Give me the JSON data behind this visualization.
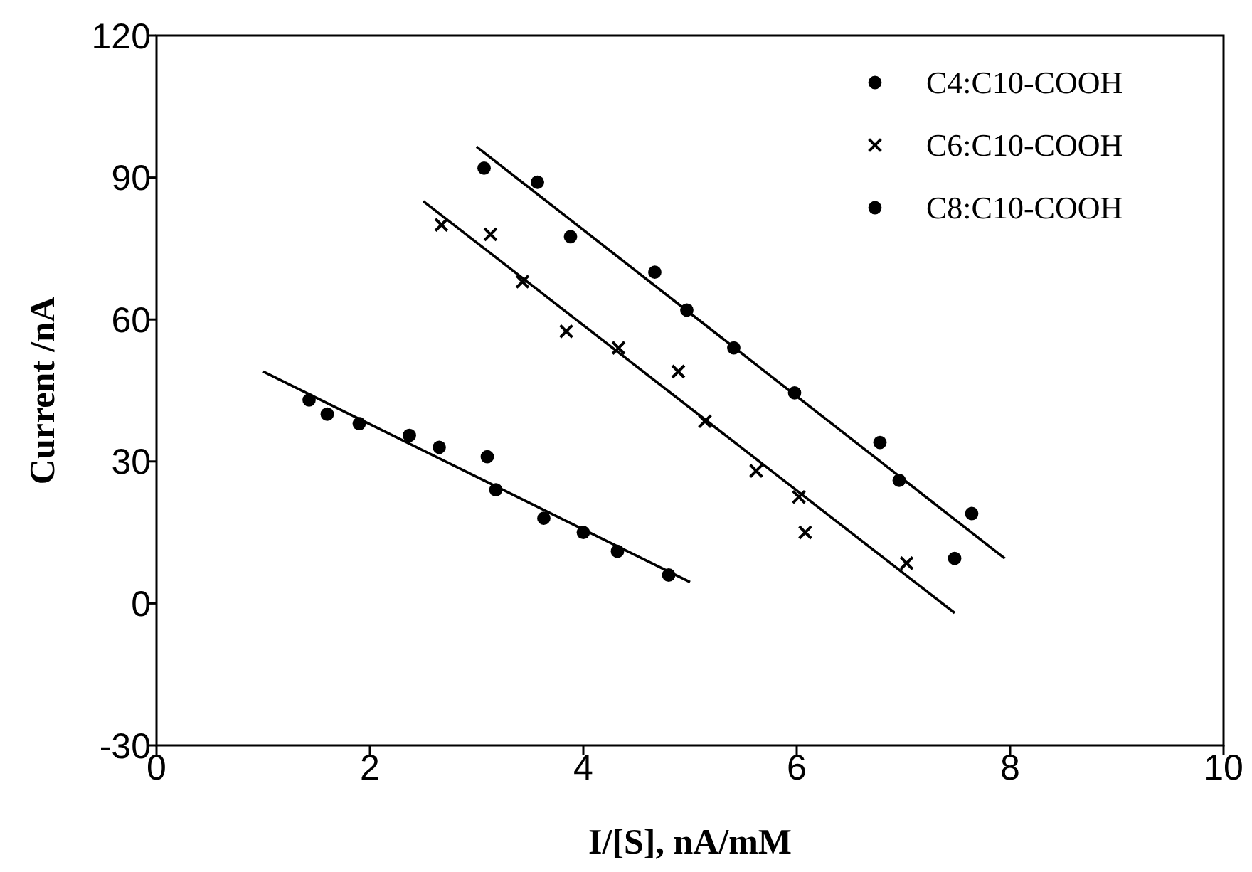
{
  "chart_data": {
    "type": "scatter",
    "xlabel": "I/[S], nA/mM",
    "ylabel": "Current /nA",
    "xlim": [
      0,
      10
    ],
    "xticks": [
      0,
      2,
      4,
      6,
      8,
      10
    ],
    "ylim": [
      -30,
      120
    ],
    "yticks": [
      -30,
      0,
      30,
      60,
      90,
      120
    ],
    "grid": false,
    "legend": "top right",
    "series": [
      {
        "name": "C4:C10-COOH",
        "color": "#000000",
        "marker": "circle",
        "x": [
          3.07,
          3.57,
          3.88,
          4.67,
          4.97,
          5.41,
          5.98,
          6.78,
          6.96,
          7.48,
          7.64
        ],
        "values": [
          92,
          89,
          77.5,
          70,
          62,
          54,
          44.5,
          34,
          26,
          9.5,
          19
        ]
      },
      {
        "name": "C6:C10-COOH",
        "color": "#000000",
        "marker": "cross",
        "x": [
          2.67,
          3.13,
          3.43,
          3.84,
          4.33,
          4.89,
          5.14,
          5.62,
          6.02,
          6.08,
          7.03
        ],
        "values": [
          80,
          78,
          68,
          57.5,
          54,
          49,
          38.5,
          28,
          22.5,
          15,
          8.5
        ]
      },
      {
        "name": "C8:C10-COOH",
        "color": "#000000",
        "marker": "circle",
        "x": [
          1.43,
          1.6,
          1.9,
          2.37,
          2.65,
          3.1,
          3.18,
          3.63,
          4.0,
          4.32,
          4.8
        ],
        "values": [
          43,
          40,
          38,
          35.5,
          33,
          31,
          24,
          18,
          15,
          11,
          6
        ]
      },
      {
        "type": "line",
        "color": "#000000",
        "marker": "none",
        "x": [
          3.0,
          7.95
        ],
        "values": [
          96.5,
          9.5
        ]
      },
      {
        "type": "line",
        "color": "#000000",
        "marker": "none",
        "x": [
          2.5,
          7.48
        ],
        "values": [
          85,
          -2
        ]
      },
      {
        "type": "line",
        "color": "#000000",
        "marker": "none",
        "x": [
          1.0,
          5.0
        ],
        "values": [
          49,
          4.5
        ]
      }
    ]
  }
}
